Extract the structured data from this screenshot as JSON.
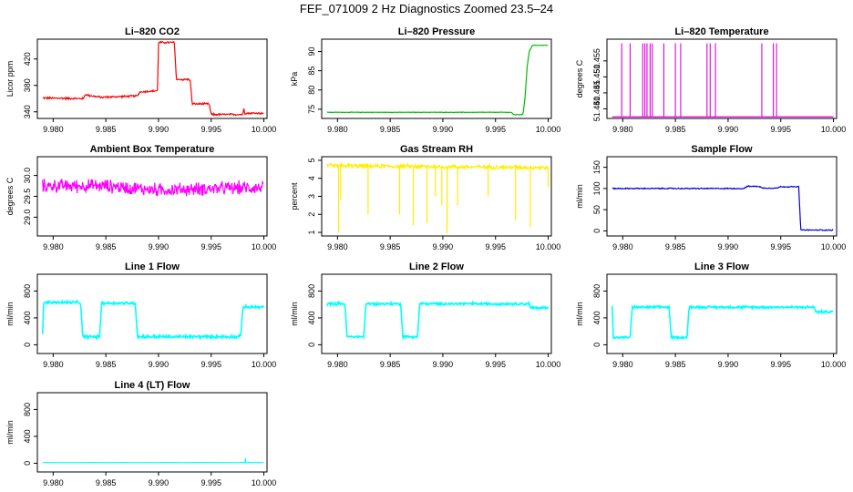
{
  "page": {
    "title": "FEF_071009  2 Hz Diagnostics Zoomed 23.5–24"
  },
  "chart_data": [
    {
      "id": "co2",
      "type": "line",
      "title": "Li–820 CO2",
      "ylabel": "Licor ppm",
      "color": "#ff0000",
      "xlim": [
        9.9785,
        10.0003
      ],
      "ylim": [
        330,
        450
      ],
      "xticks": [
        9.98,
        9.985,
        9.99,
        9.995,
        10.0
      ],
      "xtick_labels": [
        "9.980",
        "9.985",
        "9.990",
        "9.995",
        "10.000"
      ],
      "yticks": [
        340,
        380,
        420
      ],
      "ytick_labels": [
        "340",
        "380",
        "420"
      ],
      "noise": 1.2,
      "points": [
        [
          9.979,
          361
        ],
        [
          9.9829,
          360
        ],
        [
          9.983,
          366
        ],
        [
          9.9845,
          362
        ],
        [
          9.988,
          364
        ],
        [
          9.9882,
          370
        ],
        [
          9.9899,
          372
        ],
        [
          9.99,
          445
        ],
        [
          9.9915,
          445
        ],
        [
          9.9917,
          389
        ],
        [
          9.993,
          389
        ],
        [
          9.9932,
          352
        ],
        [
          9.9948,
          352
        ],
        [
          9.995,
          336
        ],
        [
          9.998,
          336
        ],
        [
          9.9981,
          345
        ],
        [
          9.9982,
          338
        ],
        [
          10.0,
          338
        ]
      ]
    },
    {
      "id": "pressure",
      "type": "line",
      "title": "Li–820 Pressure",
      "ylabel": "kPa",
      "color": "#00bb00",
      "xlim": [
        9.9785,
        10.0003
      ],
      "ylim": [
        72.6,
        93.2
      ],
      "xticks": [
        9.98,
        9.985,
        9.99,
        9.995,
        10.0
      ],
      "xtick_labels": [
        "9.980",
        "9.985",
        "9.990",
        "9.995",
        "10.000"
      ],
      "yticks": [
        75,
        80,
        85,
        90
      ],
      "ytick_labels": [
        "75",
        "80",
        "85",
        "90"
      ],
      "noise": 0.05,
      "points": [
        [
          9.979,
          74.2
        ],
        [
          9.9965,
          74.2
        ],
        [
          9.9967,
          73.6
        ],
        [
          9.9976,
          73.6
        ],
        [
          9.9978,
          78
        ],
        [
          9.998,
          86
        ],
        [
          9.9982,
          90
        ],
        [
          9.9985,
          91.6
        ],
        [
          10.0,
          91.6
        ]
      ]
    },
    {
      "id": "temperature",
      "type": "line",
      "title": "Li–820 Temperature",
      "ylabel": "degrees C",
      "color": "#e000e0",
      "xlim": [
        9.9785,
        10.0003
      ],
      "ylim": [
        51.437,
        51.4618
      ],
      "xticks": [
        9.98,
        9.985,
        9.99,
        9.995,
        10.0
      ],
      "xtick_labels": [
        "9.980",
        "9.985",
        "9.990",
        "9.995",
        "10.000"
      ],
      "yticks": [
        51.44,
        51.445,
        51.45,
        51.455
      ],
      "ytick_labels": [
        "51.440",
        "51.445",
        "51.450",
        "51.455"
      ],
      "noise": 0,
      "baseline": 51.4375,
      "spike_value": 51.4605,
      "spikes": [
        9.9799,
        9.9807,
        9.9819,
        9.9821,
        9.9823,
        9.9826,
        9.9828,
        9.9839,
        9.985,
        9.9855,
        9.988,
        9.9883,
        9.9888,
        9.9932,
        9.9943,
        9.9946
      ]
    },
    {
      "id": "ambient",
      "type": "line",
      "title": "Ambient Box Temperature",
      "ylabel": "degrees C",
      "color": "#ff00ff",
      "xlim": [
        9.9785,
        10.0003
      ],
      "ylim": [
        28.55,
        30.45
      ],
      "xticks": [
        9.98,
        9.985,
        9.99,
        9.995,
        10.0
      ],
      "xtick_labels": [
        "9.980",
        "9.985",
        "9.990",
        "9.995",
        "10.000"
      ],
      "yticks": [
        29.0,
        29.5,
        30.0
      ],
      "ytick_labels": [
        "29.0",
        "29.5",
        "30.0"
      ],
      "noise": 0.13,
      "points": [
        [
          9.979,
          29.75
        ],
        [
          9.985,
          29.75
        ],
        [
          9.99,
          29.65
        ],
        [
          10.0,
          29.72
        ]
      ]
    },
    {
      "id": "rh",
      "type": "line",
      "title": "Gas Stream RH",
      "ylabel": "percent",
      "color": "#ffee00",
      "xlim": [
        9.9785,
        10.0003
      ],
      "ylim": [
        0.8,
        5.2
      ],
      "xticks": [
        9.98,
        9.985,
        9.99,
        9.995,
        10.0
      ],
      "xtick_labels": [
        "9.980",
        "9.985",
        "9.990",
        "9.995",
        "10.000"
      ],
      "yticks": [
        1,
        2,
        3,
        4,
        5
      ],
      "ytick_labels": [
        "1",
        "2",
        "3",
        "4",
        "5"
      ],
      "noise": 0.1,
      "points": [
        [
          9.979,
          4.7
        ],
        [
          10.0,
          4.6
        ]
      ],
      "dips": [
        [
          9.9801,
          1.0
        ],
        [
          9.9803,
          2.8
        ],
        [
          9.9829,
          2.0
        ],
        [
          9.9859,
          2.0
        ],
        [
          9.9872,
          1.4
        ],
        [
          9.9885,
          1.5
        ],
        [
          9.9893,
          3.0
        ],
        [
          9.9899,
          2.5
        ],
        [
          9.9904,
          0.95
        ],
        [
          9.9914,
          2.5
        ],
        [
          9.9943,
          3.0
        ],
        [
          9.9969,
          1.7
        ],
        [
          9.9983,
          1.3
        ],
        [
          10.0,
          3.5
        ]
      ]
    },
    {
      "id": "sample",
      "type": "line",
      "title": "Sample Flow",
      "ylabel": "ml/min",
      "color": "#0000dd",
      "xlim": [
        9.9785,
        10.0003
      ],
      "ylim": [
        -12,
        175
      ],
      "xticks": [
        9.98,
        9.985,
        9.99,
        9.995,
        10.0
      ],
      "xtick_labels": [
        "9.980",
        "9.985",
        "9.990",
        "9.995",
        "10.000"
      ],
      "yticks": [
        0,
        50,
        100,
        150
      ],
      "ytick_labels": [
        "0",
        "50",
        "100",
        "150"
      ],
      "noise": 1,
      "points": [
        [
          9.979,
          100
        ],
        [
          9.9915,
          100
        ],
        [
          9.9918,
          105
        ],
        [
          9.993,
          105
        ],
        [
          9.9932,
          101
        ],
        [
          9.9947,
          101
        ],
        [
          9.9949,
          104
        ],
        [
          9.9967,
          104
        ],
        [
          9.9969,
          2
        ],
        [
          10.0,
          2
        ]
      ]
    },
    {
      "id": "line1",
      "type": "line",
      "title": "Line 1 Flow",
      "ylabel": "ml/min",
      "color": "#00ffff",
      "xlim": [
        9.9785,
        10.0003
      ],
      "ylim": [
        -130,
        1050
      ],
      "xticks": [
        9.98,
        9.985,
        9.99,
        9.995,
        10.0
      ],
      "xtick_labels": [
        "9.980",
        "9.985",
        "9.990",
        "9.995",
        "10.000"
      ],
      "yticks": [
        0,
        400,
        800
      ],
      "ytick_labels": [
        "0",
        "400",
        "800"
      ],
      "noise": 18,
      "points": [
        [
          9.979,
          150
        ],
        [
          9.9791,
          630
        ],
        [
          9.9826,
          630
        ],
        [
          9.9828,
          120
        ],
        [
          9.9844,
          120
        ],
        [
          9.9846,
          620
        ],
        [
          9.9878,
          620
        ],
        [
          9.988,
          120
        ],
        [
          9.9978,
          120
        ],
        [
          9.998,
          560
        ],
        [
          10.0,
          560
        ]
      ]
    },
    {
      "id": "line2",
      "type": "line",
      "title": "Line 2 Flow",
      "ylabel": "ml/min",
      "color": "#00ffff",
      "xlim": [
        9.9785,
        10.0003
      ],
      "ylim": [
        -130,
        1050
      ],
      "xticks": [
        9.98,
        9.985,
        9.99,
        9.995,
        10.0
      ],
      "xtick_labels": [
        "9.980",
        "9.985",
        "9.990",
        "9.995",
        "10.000"
      ],
      "yticks": [
        0,
        400,
        800
      ],
      "ytick_labels": [
        "0",
        "400",
        "800"
      ],
      "noise": 15,
      "points": [
        [
          9.979,
          610
        ],
        [
          9.9807,
          610
        ],
        [
          9.9809,
          120
        ],
        [
          9.9825,
          120
        ],
        [
          9.9827,
          610
        ],
        [
          9.986,
          610
        ],
        [
          9.9862,
          120
        ],
        [
          9.9876,
          120
        ],
        [
          9.9878,
          610
        ],
        [
          9.9982,
          610
        ],
        [
          9.9983,
          550
        ],
        [
          10.0,
          550
        ]
      ]
    },
    {
      "id": "line3",
      "type": "line",
      "title": "Line 3 Flow",
      "ylabel": "ml/min",
      "color": "#00ffff",
      "xlim": [
        9.9785,
        10.0003
      ],
      "ylim": [
        -130,
        1050
      ],
      "xticks": [
        9.98,
        9.985,
        9.99,
        9.995,
        10.0
      ],
      "xtick_labels": [
        "9.980",
        "9.985",
        "9.990",
        "9.995",
        "10.000"
      ],
      "yticks": [
        0,
        400,
        800
      ],
      "ytick_labels": [
        "0",
        "400",
        "800"
      ],
      "noise": 14,
      "points": [
        [
          9.979,
          580
        ],
        [
          9.9791,
          110
        ],
        [
          9.9807,
          110
        ],
        [
          9.9809,
          560
        ],
        [
          9.9844,
          560
        ],
        [
          9.9846,
          110
        ],
        [
          9.9861,
          110
        ],
        [
          9.9863,
          560
        ],
        [
          9.9982,
          560
        ],
        [
          9.9983,
          490
        ],
        [
          10.0,
          490
        ]
      ]
    },
    {
      "id": "line4",
      "type": "line",
      "title": "Line 4 (LT) Flow",
      "ylabel": "ml/min",
      "color": "#00ffff",
      "xlim": [
        9.9785,
        10.0003
      ],
      "ylim": [
        -130,
        1050
      ],
      "xticks": [
        9.98,
        9.985,
        9.99,
        9.995,
        10.0
      ],
      "xtick_labels": [
        "9.980",
        "9.985",
        "9.990",
        "9.995",
        "10.000"
      ],
      "yticks": [
        0,
        400,
        800
      ],
      "ytick_labels": [
        "0",
        "400",
        "800"
      ],
      "noise": 1,
      "points": [
        [
          9.979,
          10
        ],
        [
          9.9982,
          10
        ],
        [
          9.99825,
          80
        ],
        [
          9.9983,
          10
        ],
        [
          10.0,
          10
        ]
      ]
    }
  ]
}
